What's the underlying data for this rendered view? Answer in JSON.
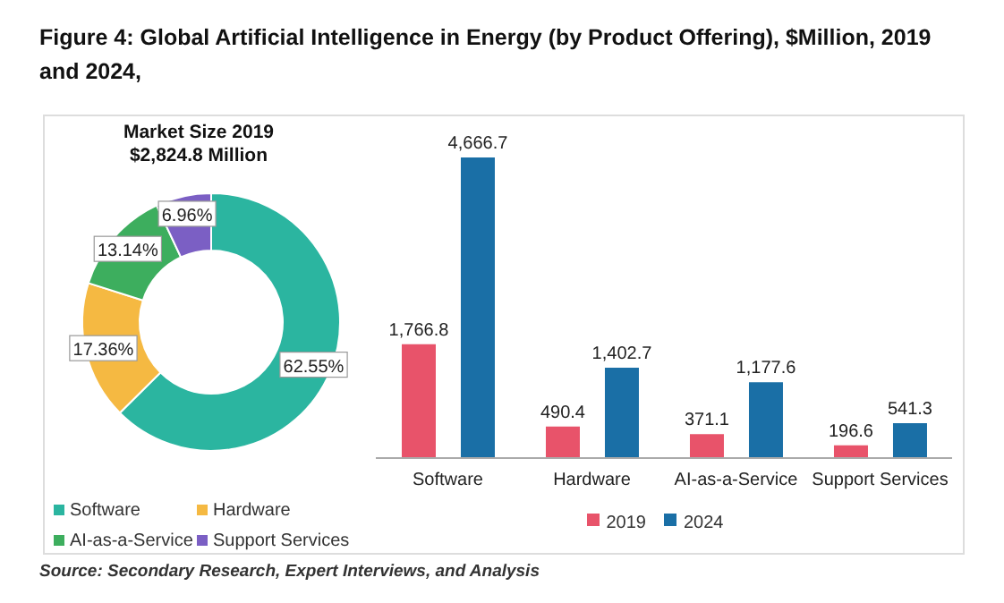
{
  "chart_data": [
    {
      "type": "donut",
      "title": "Figure 4: Global Artificial Intelligence in Energy (by Product Offering), $Million, 2019 and 2024,",
      "annotations": [
        "Market Size 2019",
        "$2,824.8 Million"
      ],
      "categories": [
        "Software",
        "Hardware",
        "AI-as-a-Service",
        "Support Services"
      ],
      "values": [
        62.55,
        17.36,
        13.14,
        6.96
      ],
      "value_labels": [
        "62.55%",
        "17.36%",
        "13.14%",
        "6.96%"
      ],
      "colors": [
        "#2bb5a0",
        "#f5b942",
        "#3dae5e",
        "#7b5fc4"
      ],
      "legend": "bottom"
    },
    {
      "type": "bar",
      "categories": [
        "Software",
        "Hardware",
        "AI-as-a-Service",
        "Support Services"
      ],
      "series": [
        {
          "name": "2019",
          "color": "#e8536a",
          "values": [
            1766.8,
            490.4,
            371.1,
            196.6
          ],
          "value_labels": [
            "1,766.8",
            "490.4",
            "371.1",
            "196.6"
          ]
        },
        {
          "name": "2024",
          "color": "#1a6fa6",
          "values": [
            4666.7,
            1402.7,
            1177.6,
            541.3
          ],
          "value_labels": [
            "4,666.7",
            "1,402.7",
            "1,177.6",
            "541.3"
          ]
        }
      ],
      "legend": "bottom",
      "annotations": [
        "Source: Secondary Research, Expert Interviews, and Analysis"
      ]
    }
  ]
}
